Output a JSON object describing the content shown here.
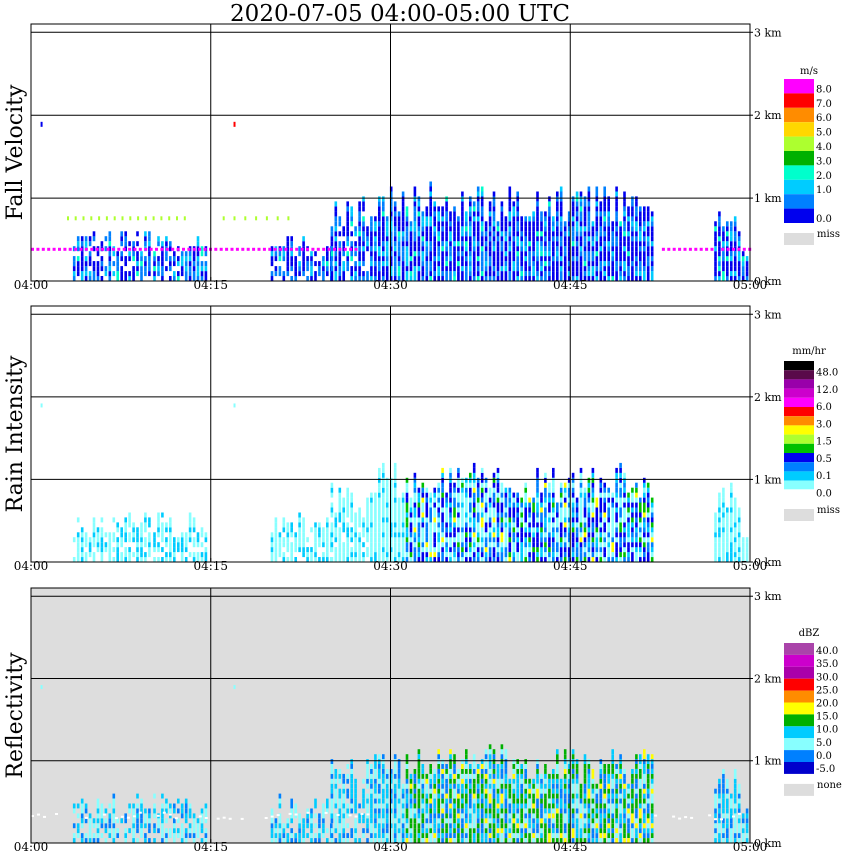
{
  "page": {
    "title": "2020-07-05   04:00-05:00 UTC"
  },
  "chart_data": [
    {
      "type": "heatmap",
      "ylabel": "Fall Velocity",
      "x_ticks": [
        "04:00",
        "04:15",
        "04:30",
        "04:45",
        "05:00"
      ],
      "y_ticks": [
        "0 km",
        "1 km",
        "2 km",
        "3 km"
      ],
      "ylim_km": [
        0,
        3.1
      ],
      "xlim_min": [
        0,
        60
      ],
      "background": "#ffffff",
      "colorbar": {
        "unit": "m/s",
        "labels": [
          "8.0",
          "7.0",
          "6.0",
          "5.0",
          "4.0",
          "3.0",
          "2.0",
          "1.0",
          "0.0"
        ],
        "colors": [
          "#ff00ff",
          "#ff0000",
          "#ff8c00",
          "#ffd700",
          "#adff2f",
          "#00b000",
          "#00ffcc",
          "#00ccff",
          "#0080ff",
          "#0000ee"
        ],
        "miss_label": "miss",
        "miss_color": "#dddddd"
      }
    },
    {
      "type": "heatmap",
      "ylabel": "Rain Intensity",
      "x_ticks": [
        "04:00",
        "04:15",
        "04:30",
        "04:45",
        "05:00"
      ],
      "y_ticks": [
        "0 km",
        "1 km",
        "2 km",
        "3 km"
      ],
      "ylim_km": [
        0,
        3.1
      ],
      "xlim_min": [
        0,
        60
      ],
      "background": "#ffffff",
      "colorbar": {
        "unit": "mm/hr",
        "labels": [
          "48.0",
          "12.0",
          "6.0",
          "3.0",
          "1.5",
          "0.5",
          "0.1",
          "0.0"
        ],
        "colors": [
          "#000000",
          "#5a0a4a",
          "#9900aa",
          "#cc00cc",
          "#ff00ff",
          "#ff0000",
          "#ff8c00",
          "#ffff00",
          "#adff2f",
          "#00c000",
          "#0000ee",
          "#0080ff",
          "#00ccff",
          "#88ffff",
          "#ffffff"
        ],
        "miss_label": "miss",
        "miss_color": "#dddddd"
      }
    },
    {
      "type": "heatmap",
      "ylabel": "Reflectivity",
      "x_ticks": [
        "04:00",
        "04:15",
        "04:30",
        "04:45",
        "05:00"
      ],
      "y_ticks": [
        "0 km",
        "1 km",
        "2 km",
        "3 km"
      ],
      "ylim_km": [
        0,
        3.1
      ],
      "xlim_min": [
        0,
        60
      ],
      "background": "#dddddd",
      "colorbar": {
        "unit": "dBZ",
        "labels": [
          "40.0",
          "35.0",
          "30.0",
          "25.0",
          "20.0",
          "15.0",
          "10.0",
          "5.0",
          "0.0",
          "-5.0"
        ],
        "colors": [
          "#aa44aa",
          "#cc00cc",
          "#aa00aa",
          "#ff0000",
          "#ff8c00",
          "#ffff00",
          "#00b000",
          "#00ccff",
          "#88ffff",
          "#0080ff",
          "#0000cc"
        ],
        "miss_label": "none",
        "miss_color": "#dddddd"
      }
    }
  ]
}
